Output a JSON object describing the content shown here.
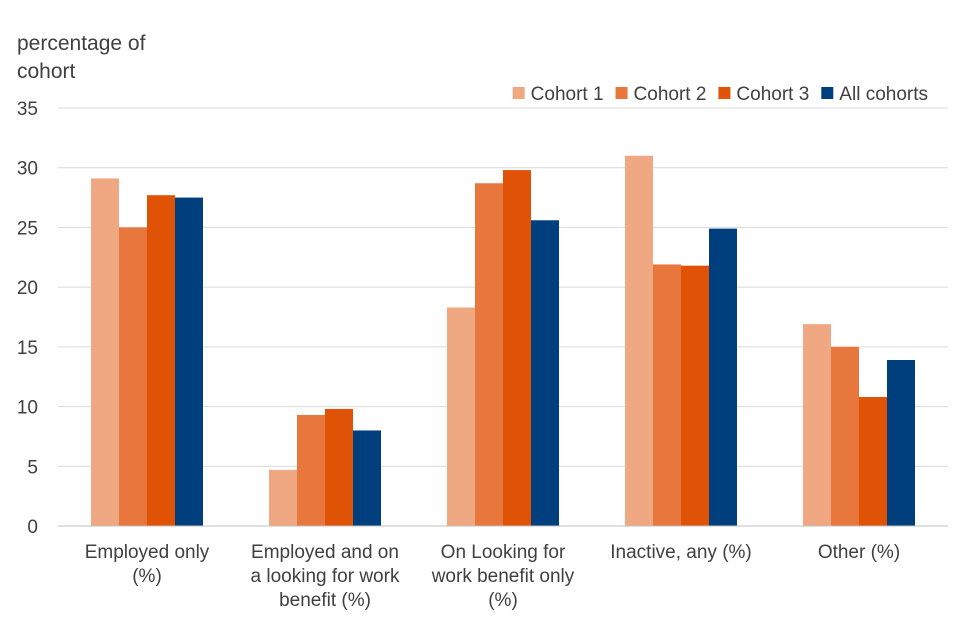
{
  "chart_data": {
    "type": "bar",
    "title": "",
    "ylabel_lines": [
      "percentage of",
      "cohort"
    ],
    "xlabel": "",
    "ylim": [
      0,
      35
    ],
    "yticks": [
      0,
      5,
      10,
      15,
      20,
      25,
      30,
      35
    ],
    "grid": true,
    "legend_position": "top-right",
    "categories": [
      "Employed only (%)",
      "Employed and on a looking for work benefit (%)",
      "On Looking for work benefit only (%)",
      "Inactive, any (%)",
      "Other (%)"
    ],
    "category_label_lines": [
      [
        "Employed only",
        "(%)"
      ],
      [
        "Employed and on",
        "a looking for work",
        "benefit (%)"
      ],
      [
        "On Looking for",
        "work benefit only",
        "(%)"
      ],
      [
        "Inactive, any (%)"
      ],
      [
        "Other (%)"
      ]
    ],
    "series": [
      {
        "name": "Cohort 1",
        "color": "#F0A882",
        "values": [
          29.1,
          4.7,
          18.3,
          31.0,
          16.9
        ]
      },
      {
        "name": "Cohort 2",
        "color": "#E8773E",
        "values": [
          25.0,
          9.3,
          28.7,
          21.9,
          15.0
        ]
      },
      {
        "name": "Cohort 3",
        "color": "#E05206",
        "values": [
          27.7,
          9.8,
          29.8,
          21.8,
          10.8
        ]
      },
      {
        "name": "All cohorts",
        "color": "#003F7D",
        "values": [
          27.5,
          8.0,
          25.6,
          24.9,
          13.9
        ]
      }
    ]
  }
}
